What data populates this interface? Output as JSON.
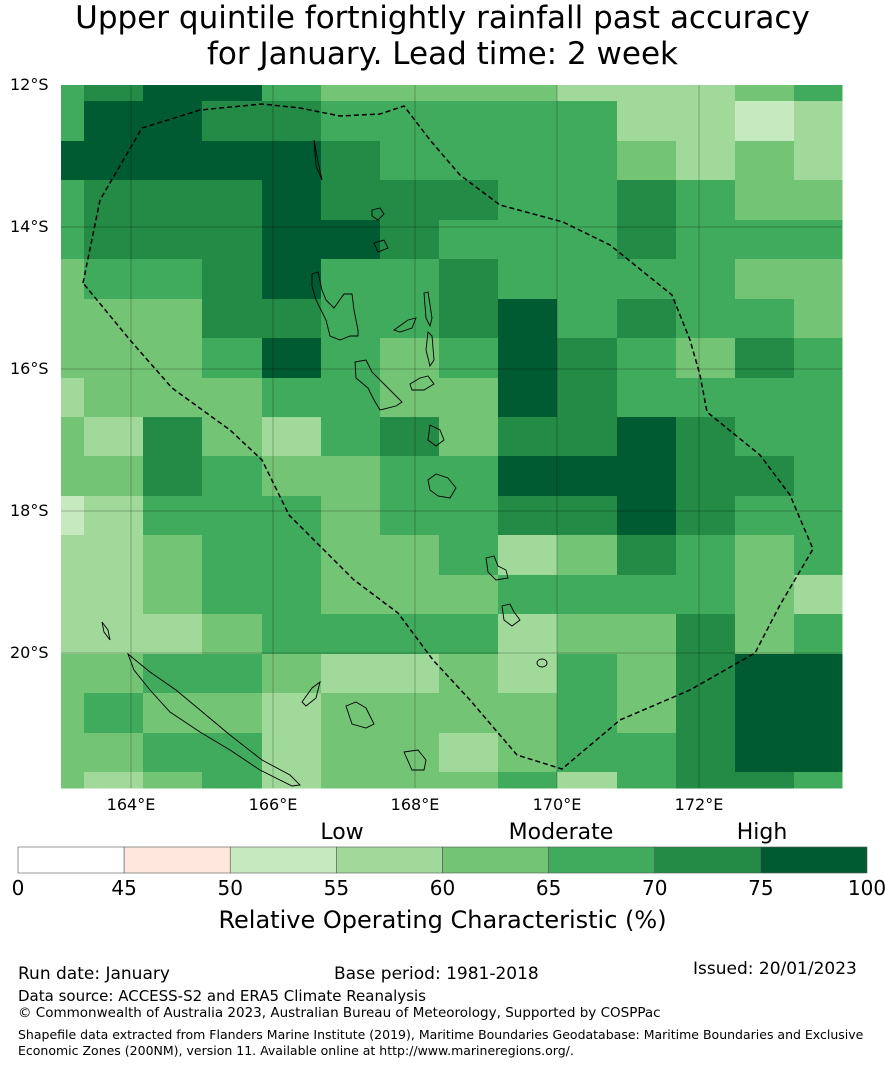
{
  "title": "Upper quintile fortnightly rainfall past accuracy\nfor January. Lead time: 2 week",
  "title_lines": [
    "Upper quintile fortnightly rainfall past accuracy",
    "for January. Lead time: 2 week"
  ],
  "map": {
    "lat_labels": [
      "12°S",
      "14°S",
      "16°S",
      "18°S",
      "20°S"
    ],
    "lon_labels": [
      "164°E",
      "166°E",
      "168°E",
      "170°E",
      "172°E"
    ],
    "roc_category_grid": [
      [
        5,
        6,
        7,
        7,
        5,
        4,
        4,
        4,
        4,
        3,
        3,
        3,
        4,
        5
      ],
      [
        5,
        7,
        7,
        6,
        6,
        5,
        5,
        5,
        5,
        5,
        3,
        3,
        2,
        3
      ],
      [
        7,
        7,
        7,
        7,
        7,
        6,
        5,
        5,
        5,
        5,
        4,
        3,
        4,
        3
      ],
      [
        5,
        6,
        6,
        6,
        7,
        6,
        6,
        6,
        5,
        5,
        6,
        5,
        4,
        4
      ],
      [
        5,
        6,
        6,
        6,
        7,
        7,
        6,
        5,
        5,
        5,
        6,
        5,
        5,
        5
      ],
      [
        4,
        5,
        5,
        6,
        7,
        5,
        5,
        6,
        5,
        5,
        5,
        5,
        4,
        4
      ],
      [
        4,
        4,
        4,
        6,
        6,
        5,
        5,
        6,
        7,
        5,
        6,
        5,
        5,
        4
      ],
      [
        4,
        4,
        4,
        5,
        7,
        5,
        4,
        5,
        7,
        6,
        5,
        4,
        6,
        5
      ],
      [
        3,
        4,
        4,
        4,
        5,
        5,
        4,
        4,
        7,
        6,
        5,
        5,
        5,
        5
      ],
      [
        4,
        3,
        6,
        4,
        3,
        5,
        6,
        4,
        6,
        6,
        7,
        6,
        5,
        5
      ],
      [
        4,
        4,
        6,
        5,
        4,
        4,
        5,
        5,
        7,
        7,
        7,
        6,
        6,
        5
      ],
      [
        2,
        3,
        5,
        5,
        5,
        4,
        5,
        5,
        6,
        6,
        7,
        6,
        5,
        5
      ],
      [
        3,
        3,
        4,
        5,
        5,
        4,
        4,
        5,
        3,
        4,
        6,
        5,
        4,
        5
      ],
      [
        3,
        3,
        4,
        5,
        5,
        4,
        4,
        4,
        5,
        5,
        5,
        5,
        4,
        3
      ],
      [
        3,
        3,
        3,
        4,
        5,
        5,
        5,
        5,
        3,
        4,
        4,
        6,
        4,
        5
      ],
      [
        4,
        4,
        5,
        5,
        4,
        3,
        3,
        4,
        3,
        5,
        4,
        6,
        7,
        7
      ],
      [
        4,
        5,
        4,
        4,
        3,
        4,
        4,
        4,
        4,
        5,
        4,
        6,
        7,
        7
      ],
      [
        4,
        4,
        5,
        5,
        3,
        4,
        4,
        3,
        4,
        5,
        5,
        6,
        7,
        7
      ],
      [
        4,
        3,
        4,
        5,
        3,
        4,
        4,
        4,
        5,
        3,
        5,
        6,
        6,
        5
      ]
    ]
  },
  "colorbar": {
    "colors": [
      "#ffffff",
      "#fee8de",
      "#c7e9c0",
      "#a1d99b",
      "#74c476",
      "#41ab5d",
      "#238b45",
      "#005a32"
    ],
    "ticks": [
      "0",
      "45",
      "50",
      "55",
      "60",
      "65",
      "70",
      "75",
      "100"
    ],
    "category_labels": [
      "Low",
      "Moderate",
      "High"
    ],
    "title": "Relative Operating Characteristic (%)"
  },
  "footer": {
    "run_date": "Run date: January",
    "base_period": "Base period: 1981-2018",
    "issued": "Issued: 20/01/2023",
    "data_source": "Data source: ACCESS-S2 and ERA5 Climate Reanalysis",
    "copyright": "© Commonwealth of Australia 2023, Australian Bureau of Meteorology, Supported by COSPPac",
    "shapefile_line1": "Shapefile data extracted from Flanders Marine Institute (2019), Maritime Boundaries Geodatabase: Maritime Boundaries and Exclusive",
    "shapefile_line2": "Economic Zones (200NM), version 11. Available online at http://www.marineregions.org/."
  }
}
